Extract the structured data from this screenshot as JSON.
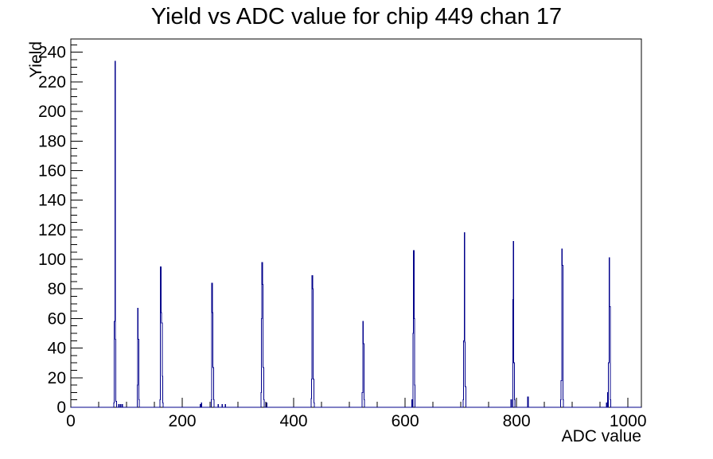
{
  "chart_data": {
    "type": "bar",
    "style": "step-histogram-outline",
    "title": "Yield vs ADC value for chip 449 chan 17",
    "xlabel": "ADC value",
    "ylabel": "Yield",
    "xlim": [
      0,
      1024
    ],
    "ylim": [
      0,
      249
    ],
    "x_major_ticks": [
      0,
      200,
      400,
      600,
      800,
      1000
    ],
    "x_minor_tick_step": 50,
    "y_major_tick_step": 20,
    "y_minor_tick_step": 5,
    "grid": false,
    "legend": false,
    "line_color": "#00008b",
    "axis_color": "#000000",
    "background_color": "#ffffff",
    "bins": [
      [
        77,
        3
      ],
      [
        78,
        58
      ],
      [
        79,
        234
      ],
      [
        80,
        46
      ],
      [
        81,
        4
      ],
      [
        86,
        2
      ],
      [
        89,
        2
      ],
      [
        92,
        2
      ],
      [
        119,
        15
      ],
      [
        120,
        67
      ],
      [
        121,
        46
      ],
      [
        122,
        5
      ],
      [
        160,
        5
      ],
      [
        161,
        95
      ],
      [
        162,
        64
      ],
      [
        163,
        57
      ],
      [
        164,
        21
      ],
      [
        165,
        3
      ],
      [
        232,
        2
      ],
      [
        234,
        3
      ],
      [
        252,
        5
      ],
      [
        253,
        84
      ],
      [
        254,
        64
      ],
      [
        255,
        27
      ],
      [
        256,
        5
      ],
      [
        264,
        2
      ],
      [
        271,
        2
      ],
      [
        277,
        2
      ],
      [
        341,
        10
      ],
      [
        342,
        60
      ],
      [
        343,
        98
      ],
      [
        344,
        83
      ],
      [
        345,
        27
      ],
      [
        346,
        5
      ],
      [
        351,
        3
      ],
      [
        431,
        6
      ],
      [
        432,
        19
      ],
      [
        433,
        89
      ],
      [
        434,
        80
      ],
      [
        435,
        19
      ],
      [
        436,
        3
      ],
      [
        523,
        10
      ],
      [
        524,
        58
      ],
      [
        525,
        43
      ],
      [
        526,
        5
      ],
      [
        612,
        5
      ],
      [
        614,
        50
      ],
      [
        615,
        106
      ],
      [
        616,
        60
      ],
      [
        617,
        15
      ],
      [
        704,
        5
      ],
      [
        705,
        45
      ],
      [
        706,
        118
      ],
      [
        707,
        44
      ],
      [
        708,
        14
      ],
      [
        790,
        5
      ],
      [
        793,
        73
      ],
      [
        794,
        112
      ],
      [
        795,
        30
      ],
      [
        796,
        5
      ],
      [
        820,
        7
      ],
      [
        879,
        5
      ],
      [
        880,
        18
      ],
      [
        881,
        107
      ],
      [
        882,
        96
      ],
      [
        883,
        5
      ],
      [
        961,
        3
      ],
      [
        963,
        10
      ],
      [
        965,
        30
      ],
      [
        966,
        101
      ],
      [
        967,
        68
      ],
      [
        968,
        5
      ]
    ]
  }
}
